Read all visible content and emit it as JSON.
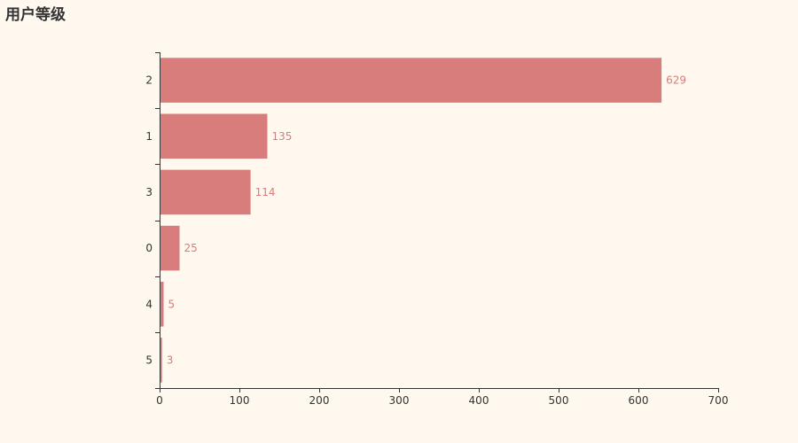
{
  "chart_data": {
    "type": "bar",
    "orientation": "horizontal",
    "title": "用户等级",
    "categories": [
      "2",
      "1",
      "3",
      "0",
      "4",
      "5"
    ],
    "values": [
      629,
      135,
      114,
      25,
      5,
      3
    ],
    "xlim": [
      0,
      700
    ],
    "xticks": [
      0,
      100,
      200,
      300,
      400,
      500,
      600,
      700
    ],
    "grid": false,
    "data_labels": true,
    "colors": {
      "bar": "#d87c7c",
      "label": "#d87c7c",
      "axis": "#333333",
      "tick_text": "#333333",
      "background": "#fef8ef"
    }
  }
}
